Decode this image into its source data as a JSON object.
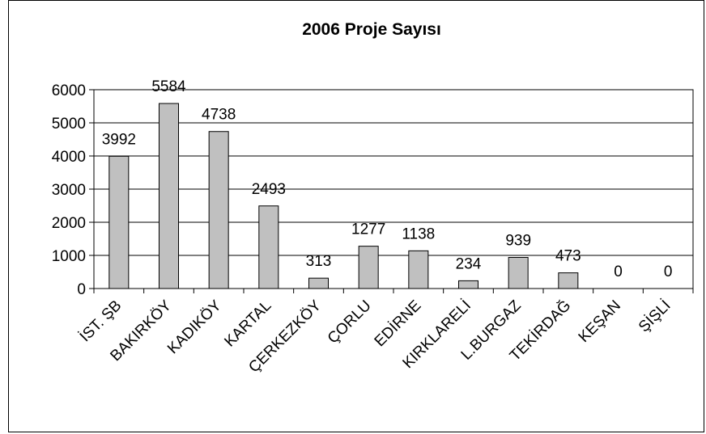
{
  "chart_data": {
    "type": "bar",
    "title": "2006 Proje Sayısı",
    "xlabel": "",
    "ylabel": "",
    "categories": [
      "İST. ŞB",
      "BAKIRKÖY",
      "KADIKÖY",
      "KARTAL",
      "ÇERKEZKÖY",
      "ÇORLU",
      "EDİRNE",
      "KIRKLARELİ",
      "L.BURGAZ",
      "TEKİRDAĞ",
      "KEŞAN",
      "ŞİŞLİ"
    ],
    "values": [
      3992,
      5584,
      4738,
      2493,
      313,
      1277,
      1138,
      234,
      939,
      473,
      0,
      0
    ],
    "data_labels": [
      "3992",
      "5584",
      "4738",
      "2493",
      "313",
      "1277",
      "1138",
      "234",
      "939",
      "473",
      "0",
      "0"
    ],
    "ylim": [
      0,
      6000
    ],
    "yticks": [
      0,
      1000,
      2000,
      3000,
      4000,
      5000,
      6000
    ],
    "ytick_labels": [
      "0",
      "1000",
      "2000",
      "3000",
      "4000",
      "5000",
      "6000"
    ],
    "grid": true,
    "legend": "none",
    "colors": {
      "bar_fill": "#c0c0c0",
      "bar_stroke": "#000000",
      "gridline": "#000000",
      "background": "#ffffff"
    }
  }
}
